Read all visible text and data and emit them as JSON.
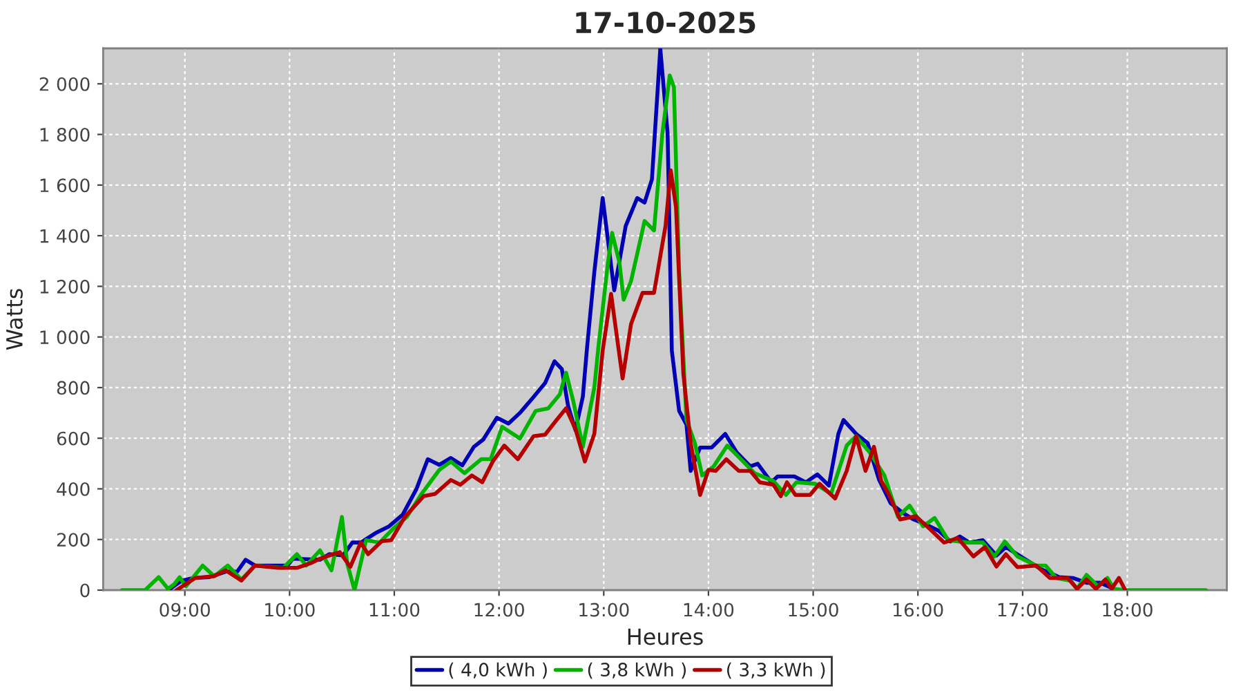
{
  "chart_data": {
    "type": "line",
    "title": "17-10-2025",
    "xlabel": "Heures",
    "ylabel": "Watts",
    "xlim": [
      8.22,
      18.95
    ],
    "ylim": [
      0,
      2140
    ],
    "xticks": [
      {
        "value": 9,
        "label": "09:00"
      },
      {
        "value": 10,
        "label": "10:00"
      },
      {
        "value": 11,
        "label": "11:00"
      },
      {
        "value": 12,
        "label": "12:00"
      },
      {
        "value": 13,
        "label": "13:00"
      },
      {
        "value": 14,
        "label": "14:00"
      },
      {
        "value": 15,
        "label": "15:00"
      },
      {
        "value": 16,
        "label": "16:00"
      },
      {
        "value": 17,
        "label": "17:00"
      },
      {
        "value": 18,
        "label": "18:00"
      }
    ],
    "yticks": [
      0,
      200,
      400,
      600,
      800,
      {
        "value": 1000,
        "label": "1 000"
      },
      {
        "value": 1200,
        "label": "1 200"
      },
      {
        "value": 1400,
        "label": "1 400"
      },
      {
        "value": 1600,
        "label": "1 600"
      },
      {
        "value": 1800,
        "label": "1 800"
      },
      {
        "value": 2000,
        "label": "2 000"
      }
    ],
    "grid": true,
    "legend": "bottom",
    "line_style": "solid",
    "series": [
      {
        "name": "( 4,0 kWh )",
        "color": "#0000b4",
        "x": [
          8.84,
          8.97,
          9.08,
          9.23,
          9.39,
          9.5,
          9.58,
          9.67,
          9.98,
          10.03,
          10.29,
          10.38,
          10.51,
          10.6,
          10.68,
          10.82,
          10.95,
          11.08,
          11.21,
          11.32,
          11.43,
          11.54,
          11.65,
          11.76,
          11.85,
          11.98,
          12.09,
          12.2,
          12.33,
          12.44,
          12.53,
          12.6,
          12.66,
          12.73,
          12.8,
          12.84,
          12.91,
          12.99,
          13.1,
          13.21,
          13.32,
          13.39,
          13.46,
          13.54,
          13.61,
          13.65,
          13.72,
          13.79,
          13.83,
          13.92,
          14.03,
          14.16,
          14.27,
          14.4,
          14.47,
          14.6,
          14.66,
          14.82,
          14.93,
          15.04,
          15.15,
          15.24,
          15.29,
          15.41,
          15.52,
          15.63,
          15.74,
          15.85,
          15.96,
          16.07,
          16.2,
          16.31,
          16.4,
          16.49,
          16.62,
          16.75,
          16.84,
          17.0,
          17.17,
          17.35,
          17.48,
          17.61,
          17.74,
          17.9
        ],
        "values": [
          0,
          37,
          48,
          51,
          73,
          73,
          120,
          97,
          97,
          124,
          120,
          142,
          137,
          188,
          188,
          225,
          252,
          298,
          398,
          517,
          495,
          522,
          493,
          566,
          595,
          681,
          658,
          700,
          763,
          818,
          904,
          873,
          727,
          632,
          763,
          955,
          1256,
          1549,
          1184,
          1439,
          1549,
          1531,
          1622,
          2140,
          1804,
          946,
          708,
          654,
          471,
          563,
          563,
          617,
          544,
          489,
          499,
          426,
          449,
          449,
          426,
          457,
          413,
          617,
          672,
          617,
          581,
          435,
          343,
          307,
          279,
          261,
          234,
          192,
          212,
          188,
          197,
          137,
          170,
          128,
          84,
          51,
          48,
          29,
          29,
          0
        ]
      },
      {
        "name": "( 3,8 kWh )",
        "color": "#00b400",
        "x": [
          8.4,
          8.62,
          8.75,
          8.84,
          8.9,
          8.95,
          9.01,
          9.17,
          9.28,
          9.41,
          9.54,
          9.67,
          9.94,
          10.07,
          10.16,
          10.29,
          10.4,
          10.5,
          10.55,
          10.62,
          10.73,
          10.86,
          10.99,
          11.12,
          11.26,
          11.43,
          11.54,
          11.67,
          11.83,
          11.92,
          12.03,
          12.2,
          12.35,
          12.47,
          12.58,
          12.64,
          12.71,
          12.8,
          12.91,
          12.95,
          13.04,
          13.08,
          13.15,
          13.19,
          13.26,
          13.34,
          13.39,
          13.48,
          13.56,
          13.63,
          13.67,
          13.72,
          13.79,
          13.87,
          13.94,
          14.05,
          14.18,
          14.31,
          14.44,
          14.62,
          14.74,
          14.84,
          15.02,
          15.17,
          15.32,
          15.41,
          15.54,
          15.68,
          15.81,
          15.92,
          16.05,
          16.16,
          16.29,
          16.47,
          16.62,
          16.73,
          16.83,
          16.95,
          17.13,
          17.22,
          17.32,
          17.46,
          17.52,
          17.61,
          17.72,
          17.81,
          17.87,
          17.98,
          18.75
        ],
        "values": [
          0,
          0,
          51,
          5,
          24,
          51,
          15,
          97,
          55,
          97,
          42,
          97,
          88,
          142,
          97,
          157,
          78,
          289,
          106,
          0,
          197,
          188,
          243,
          289,
          380,
          475,
          508,
          462,
          517,
          517,
          645,
          599,
          708,
          718,
          773,
          859,
          745,
          566,
          800,
          964,
          1293,
          1411,
          1293,
          1147,
          1220,
          1366,
          1458,
          1421,
          1804,
          2033,
          1987,
          1256,
          672,
          581,
          453,
          489,
          571,
          517,
          462,
          431,
          376,
          426,
          420,
          380,
          571,
          608,
          544,
          453,
          290,
          334,
          252,
          285,
          197,
          188,
          188,
          133,
          192,
          133,
          97,
          97,
          48,
          37,
          5,
          60,
          15,
          48,
          5,
          0,
          0
        ]
      },
      {
        "name": "( 3,3 kWh )",
        "color": "#b40000",
        "x": [
          8.92,
          9.1,
          9.28,
          9.39,
          9.54,
          9.67,
          9.89,
          10.07,
          10.2,
          10.29,
          10.42,
          10.48,
          10.58,
          10.68,
          10.75,
          10.88,
          10.97,
          11.1,
          11.28,
          11.39,
          11.54,
          11.63,
          11.74,
          11.84,
          11.94,
          12.05,
          12.18,
          12.33,
          12.44,
          12.55,
          12.64,
          12.73,
          12.82,
          12.91,
          12.99,
          13.07,
          13.18,
          13.26,
          13.37,
          13.48,
          13.59,
          13.64,
          13.69,
          13.76,
          13.83,
          13.92,
          14.0,
          14.07,
          14.17,
          14.29,
          14.4,
          14.49,
          14.62,
          14.69,
          14.75,
          14.83,
          14.97,
          15.06,
          15.21,
          15.32,
          15.41,
          15.5,
          15.58,
          15.65,
          15.72,
          15.83,
          15.98,
          16.11,
          16.25,
          16.38,
          16.53,
          16.64,
          16.75,
          16.84,
          16.95,
          17.13,
          17.26,
          17.43,
          17.52,
          17.61,
          17.7,
          17.79,
          17.85,
          17.92,
          17.98
        ],
        "values": [
          0,
          48,
          55,
          78,
          38,
          97,
          88,
          88,
          106,
          124,
          142,
          150,
          92,
          188,
          142,
          193,
          197,
          289,
          371,
          380,
          435,
          416,
          453,
          426,
          508,
          571,
          517,
          608,
          614,
          672,
          718,
          636,
          508,
          617,
          946,
          1170,
          836,
          1050,
          1174,
          1174,
          1439,
          1658,
          1512,
          855,
          581,
          376,
          475,
          471,
          517,
          471,
          471,
          426,
          416,
          371,
          426,
          376,
          376,
          420,
          362,
          471,
          608,
          471,
          566,
          431,
          380,
          279,
          292,
          243,
          188,
          206,
          133,
          170,
          93,
          142,
          91,
          97,
          48,
          48,
          5,
          42,
          5,
          42,
          5,
          48,
          0
        ]
      }
    ]
  }
}
